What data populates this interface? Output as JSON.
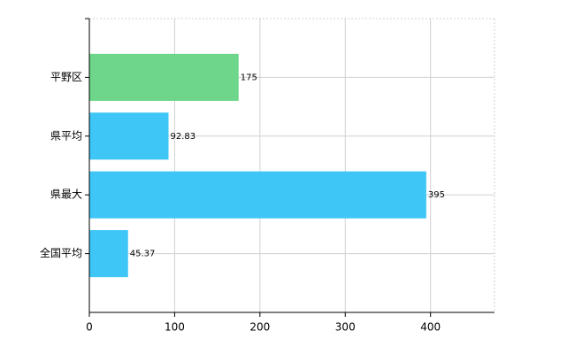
{
  "chart_data": {
    "type": "bar",
    "orientation": "horizontal",
    "categories": [
      "平野区",
      "県平均",
      "県最大",
      "全国平均"
    ],
    "values": [
      175,
      92.83,
      395,
      45.37
    ],
    "colors": [
      "#6dd68a",
      "#3ec6f7",
      "#3ec6f7",
      "#3ec6f7"
    ],
    "xlim": [
      0,
      475
    ],
    "xticks": [
      0,
      100,
      200,
      300,
      400
    ],
    "grid": true
  }
}
